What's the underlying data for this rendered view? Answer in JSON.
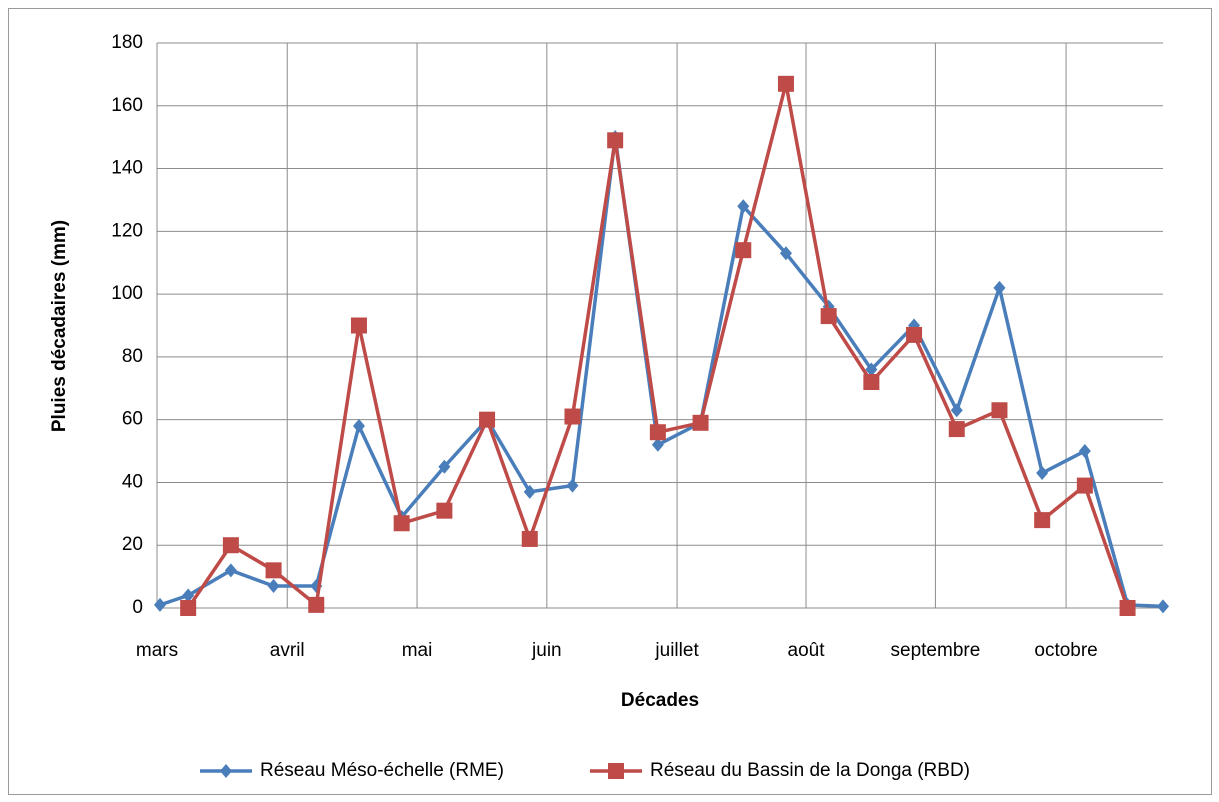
{
  "chart_data": {
    "type": "line",
    "xlabel": "Décades",
    "ylabel": "Pluies décadaires (mm)",
    "xlim": [
      -0.73,
      22.83
    ],
    "ylim": [
      0,
      180
    ],
    "xticks": [
      {
        "value": -0.73,
        "label": "mars"
      },
      {
        "value": 2.32,
        "label": "avril"
      },
      {
        "value": 5.36,
        "label": "mai"
      },
      {
        "value": 8.4,
        "label": "juin"
      },
      {
        "value": 11.45,
        "label": "juillet"
      },
      {
        "value": 14.47,
        "label": "août"
      },
      {
        "value": 17.5,
        "label": "septembre"
      },
      {
        "value": 20.56,
        "label": "octobre"
      }
    ],
    "yticks": [
      0,
      20,
      40,
      60,
      80,
      100,
      120,
      140,
      160,
      180
    ],
    "grid": true,
    "legend": "bottom",
    "series": [
      {
        "name": "Réseau Méso-échelle (RME)",
        "color": "#4a7ebb",
        "marker": "diamond",
        "x": [
          -0.66,
          0,
          1,
          2,
          3,
          4,
          5,
          6,
          7,
          8,
          9,
          10,
          11,
          12,
          13,
          14,
          15,
          16,
          17,
          18,
          19,
          20,
          21,
          22,
          22.83
        ],
        "values": [
          1,
          4,
          12,
          7,
          7,
          58,
          29,
          45,
          60,
          37,
          39,
          150,
          52,
          59,
          128,
          113,
          96,
          76,
          90,
          63,
          102,
          43,
          50,
          1,
          0.5
        ]
      },
      {
        "name": "Réseau du Bassin de la Donga (RBD)",
        "color": "#be4b48",
        "marker": "square",
        "x": [
          0,
          1,
          2,
          3,
          4,
          5,
          6,
          7,
          8,
          9,
          10,
          11,
          12,
          13,
          14,
          15,
          16,
          17,
          18,
          19,
          20,
          21,
          22
        ],
        "values": [
          0,
          20,
          12,
          1,
          90,
          27,
          31,
          60,
          22,
          61,
          149,
          56,
          59,
          114,
          167,
          93,
          72,
          87,
          57,
          63,
          28,
          39,
          0
        ]
      }
    ]
  }
}
